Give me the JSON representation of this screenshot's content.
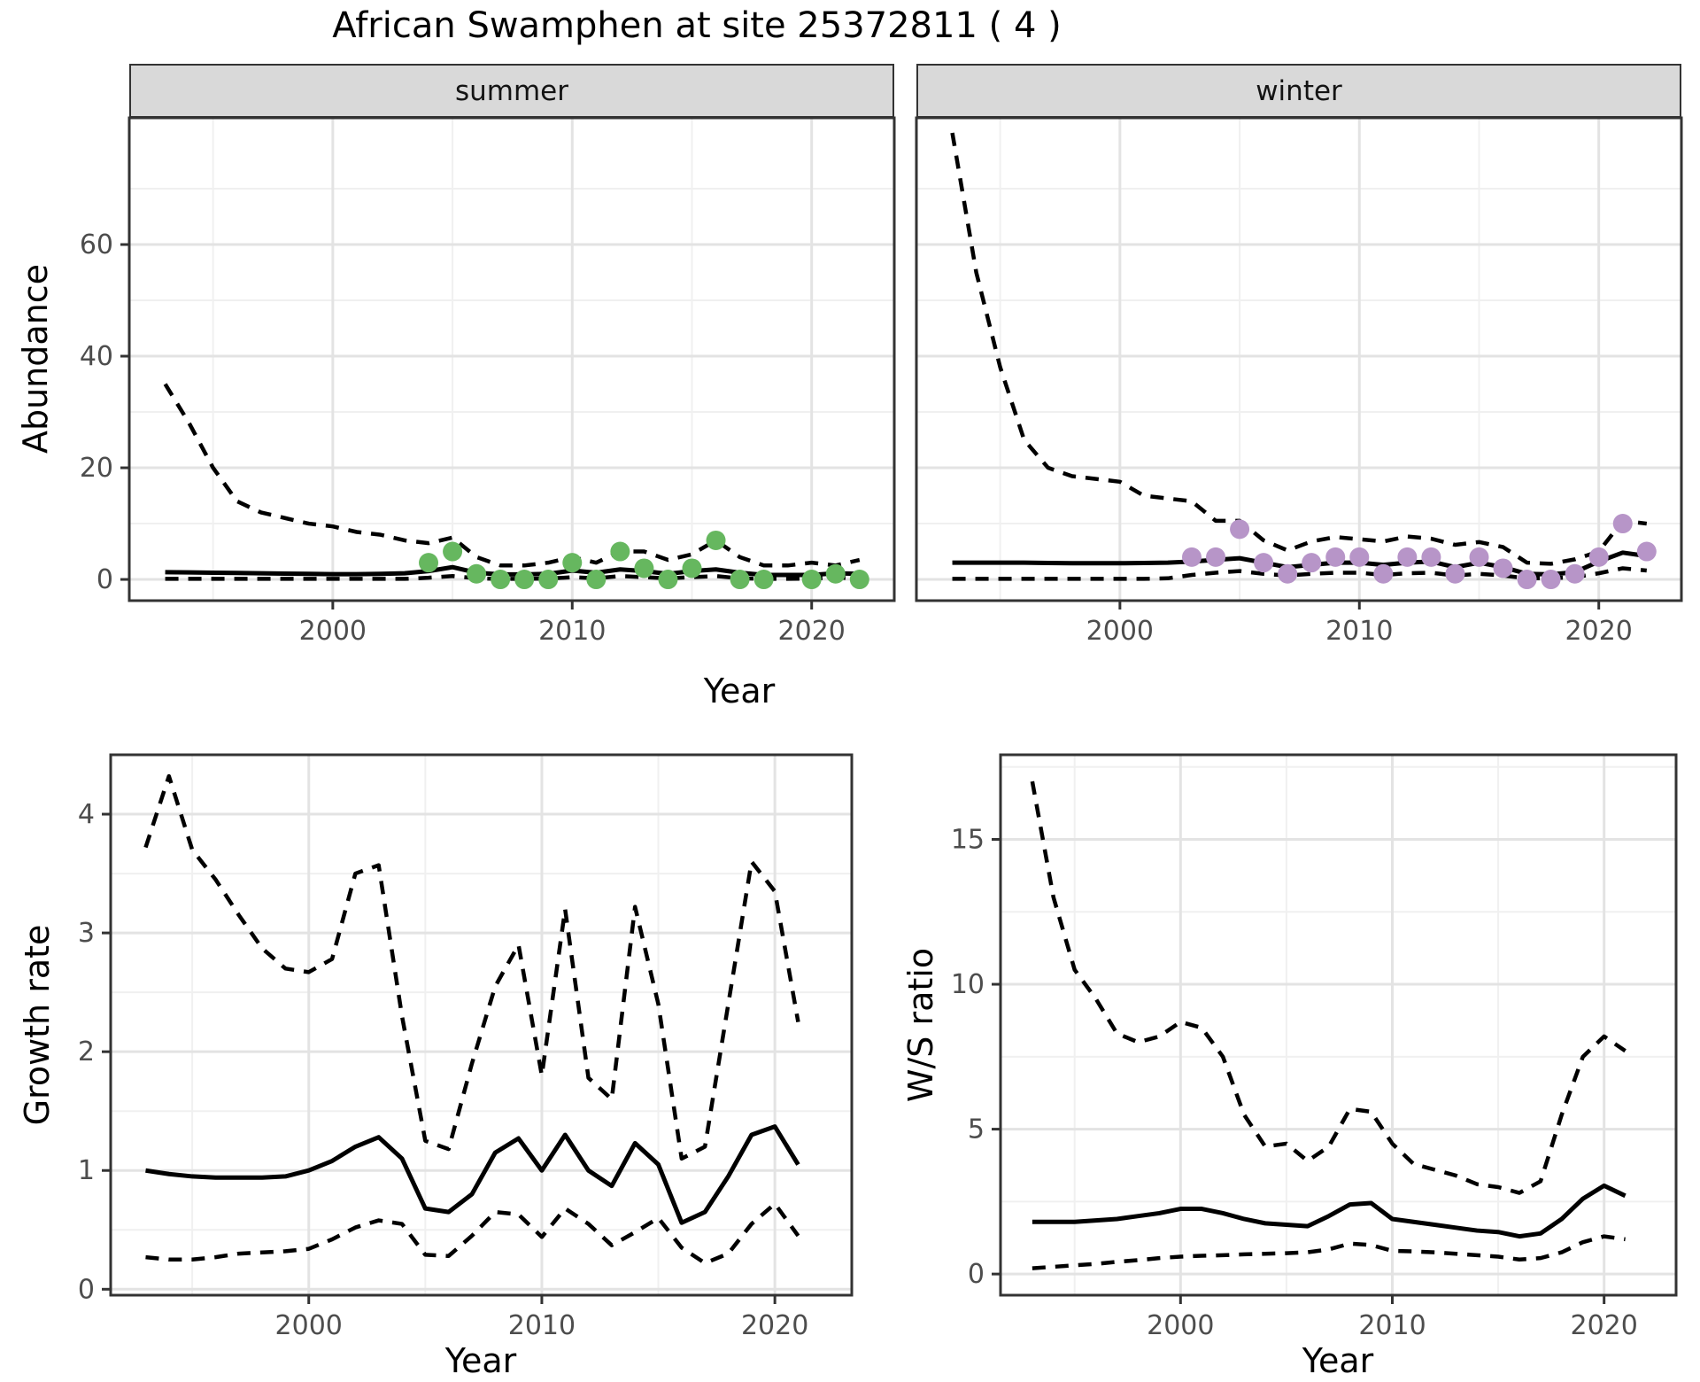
{
  "labels": {
    "title": "African Swamphen at site 25372811 ( 4 )",
    "facet_summer": "summer",
    "facet_winter": "winter",
    "y_top": "Abundance",
    "x_top": "Year",
    "y_growth": "Growth rate",
    "x_growth": "Year",
    "y_ws": "W/S ratio",
    "x_ws": "Year"
  },
  "colors": {
    "summer_points": "#66b75f",
    "winter_points": "#b795c8",
    "line": "#000000",
    "grid_major": "#e3e3e3",
    "grid_minor": "#f0f0f0",
    "panel_border": "#333333",
    "strip_bg": "#d9d9d9",
    "tick_label": "#4d4d4d"
  },
  "chart_data": [
    {
      "id": "abundance-summer",
      "type": "line",
      "facet": "summer",
      "xlabel": "Year",
      "ylabel": "Abundance",
      "x_domain": [
        1991.5,
        2023.45
      ],
      "y_domain": [
        -3.8,
        82.7
      ],
      "x_ticks": [
        2000,
        2010,
        2020
      ],
      "x_minor_ticks": [
        1995,
        2005,
        2015
      ],
      "y_ticks": [
        0,
        20,
        40,
        60
      ],
      "y_minor_ticks": [
        10,
        30,
        50,
        70
      ],
      "show_y_tick_labels": true,
      "series": [
        {
          "name": "upper-95ci",
          "style": "dashed",
          "years": [
            1993,
            1994,
            1995,
            1996,
            1997,
            1998,
            1999,
            2000,
            2001,
            2002,
            2003,
            2004,
            2005,
            2006,
            2007,
            2008,
            2009,
            2010,
            2011,
            2012,
            2013,
            2014,
            2015,
            2016,
            2017,
            2018,
            2019,
            2020,
            2021,
            2022
          ],
          "values": [
            35,
            28,
            20,
            14,
            12,
            11,
            10,
            9.5,
            8.5,
            8,
            7,
            6.5,
            7.5,
            4,
            2.5,
            2.5,
            3,
            4,
            3,
            5,
            5,
            3.5,
            4.5,
            7,
            4,
            2.5,
            2.5,
            3,
            2.5,
            3.5
          ]
        },
        {
          "name": "median",
          "style": "solid",
          "years": [
            1993,
            1994,
            1995,
            1996,
            1997,
            1998,
            1999,
            2000,
            2001,
            2002,
            2003,
            2004,
            2005,
            2006,
            2007,
            2008,
            2009,
            2010,
            2011,
            2012,
            2013,
            2014,
            2015,
            2016,
            2017,
            2018,
            2019,
            2020,
            2021,
            2022
          ],
          "values": [
            1.3,
            1.25,
            1.2,
            1.15,
            1.1,
            1.05,
            1.0,
            0.95,
            0.95,
            1.0,
            1.1,
            1.5,
            2.2,
            1.2,
            0.9,
            0.9,
            1.0,
            1.6,
            1.2,
            1.8,
            1.5,
            1.0,
            1.5,
            1.8,
            1.2,
            0.8,
            0.8,
            0.8,
            1.1,
            1.0
          ]
        },
        {
          "name": "lower-95ci",
          "style": "dashed",
          "years": [
            1993,
            1994,
            1995,
            1996,
            1997,
            1998,
            1999,
            2000,
            2001,
            2002,
            2003,
            2004,
            2005,
            2006,
            2007,
            2008,
            2009,
            2010,
            2011,
            2012,
            2013,
            2014,
            2015,
            2016,
            2017,
            2018,
            2019,
            2020,
            2021,
            2022
          ],
          "values": [
            0.1,
            0.1,
            0.1,
            0.1,
            0.1,
            0.1,
            0.1,
            0.1,
            0.1,
            0.1,
            0.1,
            0.3,
            0.6,
            0.2,
            0.1,
            0.1,
            0.15,
            0.4,
            0.2,
            0.6,
            0.4,
            0.2,
            0.4,
            0.6,
            0.2,
            0.1,
            0.1,
            0.15,
            0.3,
            0.2
          ]
        }
      ],
      "points": {
        "name": "observed-abundance-summer",
        "color": "#66b75f",
        "years": [
          2004,
          2005,
          2006,
          2007,
          2008,
          2009,
          2010,
          2011,
          2012,
          2013,
          2014,
          2015,
          2016,
          2017,
          2018,
          2020,
          2021,
          2022
        ],
        "values": [
          3,
          5,
          1,
          0,
          0,
          0,
          3,
          0,
          5,
          2,
          0,
          2,
          7,
          0,
          0,
          0,
          1,
          0
        ]
      }
    },
    {
      "id": "abundance-winter",
      "type": "line",
      "facet": "winter",
      "xlabel": "Year",
      "ylabel": "Abundance",
      "x_domain": [
        1991.5,
        2023.45
      ],
      "y_domain": [
        -3.8,
        82.7
      ],
      "x_ticks": [
        2000,
        2010,
        2020
      ],
      "x_minor_ticks": [
        1995,
        2005,
        2015
      ],
      "y_ticks": [
        0,
        20,
        40,
        60
      ],
      "y_minor_ticks": [
        10,
        30,
        50,
        70
      ],
      "show_y_tick_labels": false,
      "series": [
        {
          "name": "upper-95ci",
          "style": "dashed",
          "years": [
            1993,
            1994,
            1995,
            1996,
            1997,
            1998,
            1999,
            2000,
            2001,
            2002,
            2003,
            2004,
            2005,
            2006,
            2007,
            2008,
            2009,
            2010,
            2011,
            2012,
            2013,
            2014,
            2015,
            2016,
            2017,
            2018,
            2019,
            2020,
            2021,
            2022
          ],
          "values": [
            80,
            55,
            38,
            25,
            20,
            18.5,
            18,
            17.5,
            15,
            14.5,
            14,
            10.5,
            10.5,
            7,
            5.2,
            6.8,
            7.6,
            7.2,
            6.8,
            7.7,
            7.3,
            6.2,
            6.7,
            5.8,
            3,
            2.8,
            3.6,
            5,
            10.5,
            10
          ]
        },
        {
          "name": "median",
          "style": "solid",
          "years": [
            1993,
            1994,
            1995,
            1996,
            1997,
            1998,
            1999,
            2000,
            2001,
            2002,
            2003,
            2004,
            2005,
            2006,
            2007,
            2008,
            2009,
            2010,
            2011,
            2012,
            2013,
            2014,
            2015,
            2016,
            2017,
            2018,
            2019,
            2020,
            2021,
            2022
          ],
          "values": [
            3,
            3,
            3,
            3,
            2.95,
            2.9,
            2.9,
            2.9,
            2.95,
            3,
            3.2,
            3.5,
            3.8,
            3,
            2.2,
            2.6,
            3,
            3,
            2.6,
            3,
            3.2,
            2.2,
            3,
            2.2,
            1,
            0.9,
            1.3,
            3.2,
            4.8,
            4.2
          ]
        },
        {
          "name": "lower-95ci",
          "style": "dashed",
          "years": [
            1993,
            1994,
            1995,
            1996,
            1997,
            1998,
            1999,
            2000,
            2001,
            2002,
            2003,
            2004,
            2005,
            2006,
            2007,
            2008,
            2009,
            2010,
            2011,
            2012,
            2013,
            2014,
            2015,
            2016,
            2017,
            2018,
            2019,
            2020,
            2021,
            2022
          ],
          "values": [
            0.1,
            0.1,
            0.1,
            0.1,
            0.1,
            0.1,
            0.1,
            0.1,
            0.1,
            0.2,
            0.8,
            1.2,
            1.5,
            1,
            0.7,
            1,
            1.2,
            1.2,
            0.8,
            1.1,
            1.2,
            0.7,
            1,
            0.7,
            0.2,
            0.2,
            0.4,
            1.1,
            2,
            1.6
          ]
        }
      ],
      "points": {
        "name": "observed-abundance-winter",
        "color": "#b795c8",
        "years": [
          2003,
          2004,
          2005,
          2006,
          2007,
          2008,
          2009,
          2010,
          2011,
          2012,
          2013,
          2014,
          2015,
          2016,
          2017,
          2018,
          2019,
          2020,
          2021,
          2022
        ],
        "values": [
          4,
          4,
          9,
          3,
          1,
          3,
          4,
          4,
          1,
          4,
          4,
          1,
          4,
          2,
          0,
          0,
          1,
          4,
          10,
          5
        ]
      }
    },
    {
      "id": "growth-rate",
      "type": "line",
      "facet": null,
      "xlabel": "Year",
      "ylabel": "Growth rate",
      "x_domain": [
        1991.5,
        2023.3
      ],
      "y_domain": [
        -0.05,
        4.5
      ],
      "x_ticks": [
        2000,
        2010,
        2020
      ],
      "x_minor_ticks": [
        1995,
        2005,
        2015
      ],
      "y_ticks": [
        0,
        1,
        2,
        3,
        4
      ],
      "y_minor_ticks": [
        0.5,
        1.5,
        2.5,
        3.5
      ],
      "show_y_tick_labels": true,
      "series": [
        {
          "name": "upper-95ci",
          "style": "dashed",
          "years": [
            1993,
            1994,
            1995,
            1996,
            1997,
            1998,
            1999,
            2000,
            2001,
            2002,
            2003,
            2004,
            2005,
            2006,
            2007,
            2008,
            2009,
            2010,
            2011,
            2012,
            2013,
            2014,
            2015,
            2016,
            2017,
            2018,
            2019,
            2020,
            2021
          ],
          "values": [
            3.72,
            4.32,
            3.7,
            3.45,
            3.15,
            2.87,
            2.7,
            2.67,
            2.78,
            3.5,
            3.57,
            2.3,
            1.25,
            1.18,
            1.9,
            2.55,
            2.9,
            1.8,
            3.2,
            1.78,
            1.6,
            3.22,
            2.4,
            1.1,
            1.2,
            2.4,
            3.6,
            3.35,
            2.25
          ]
        },
        {
          "name": "median",
          "style": "solid",
          "years": [
            1993,
            1994,
            1995,
            1996,
            1997,
            1998,
            1999,
            2000,
            2001,
            2002,
            2003,
            2004,
            2005,
            2006,
            2007,
            2008,
            2009,
            2010,
            2011,
            2012,
            2013,
            2014,
            2015,
            2016,
            2017,
            2018,
            2019,
            2020,
            2021
          ],
          "values": [
            1.0,
            0.97,
            0.95,
            0.94,
            0.94,
            0.94,
            0.95,
            1.0,
            1.08,
            1.2,
            1.28,
            1.1,
            0.68,
            0.65,
            0.8,
            1.15,
            1.27,
            1.0,
            1.3,
            1.0,
            0.87,
            1.23,
            1.05,
            0.56,
            0.65,
            0.95,
            1.3,
            1.37,
            1.05
          ]
        },
        {
          "name": "lower-95ci",
          "style": "dashed",
          "years": [
            1993,
            1994,
            1995,
            1996,
            1997,
            1998,
            1999,
            2000,
            2001,
            2002,
            2003,
            2004,
            2005,
            2006,
            2007,
            2008,
            2009,
            2010,
            2011,
            2012,
            2013,
            2014,
            2015,
            2016,
            2017,
            2018,
            2019,
            2020,
            2021
          ],
          "values": [
            0.27,
            0.25,
            0.25,
            0.27,
            0.3,
            0.31,
            0.32,
            0.34,
            0.42,
            0.52,
            0.58,
            0.55,
            0.29,
            0.28,
            0.45,
            0.65,
            0.63,
            0.44,
            0.68,
            0.55,
            0.37,
            0.48,
            0.6,
            0.35,
            0.22,
            0.3,
            0.55,
            0.72,
            0.45
          ]
        }
      ],
      "points": null
    },
    {
      "id": "ws-ratio",
      "type": "line",
      "facet": null,
      "xlabel": "Year",
      "ylabel": "W/S ratio",
      "x_domain": [
        1991.5,
        2023.4
      ],
      "y_domain": [
        -0.73,
        17.92
      ],
      "x_ticks": [
        2000,
        2010,
        2020
      ],
      "x_minor_ticks": [
        1995,
        2005,
        2015
      ],
      "y_ticks": [
        0,
        5,
        10,
        15
      ],
      "y_minor_ticks": [
        2.5,
        7.5,
        12.5,
        17.5
      ],
      "show_y_tick_labels": true,
      "series": [
        {
          "name": "upper-95ci",
          "style": "dashed",
          "years": [
            1993,
            1994,
            1995,
            1996,
            1997,
            1998,
            1999,
            2000,
            2001,
            2002,
            2003,
            2004,
            2005,
            2006,
            2007,
            2008,
            2009,
            2010,
            2011,
            2012,
            2013,
            2014,
            2015,
            2016,
            2017,
            2018,
            2019,
            2020,
            2021
          ],
          "values": [
            17,
            13,
            10.5,
            9.5,
            8.3,
            8.0,
            8.2,
            8.7,
            8.5,
            7.5,
            5.5,
            4.4,
            4.5,
            3.9,
            4.4,
            5.7,
            5.6,
            4.5,
            3.8,
            3.6,
            3.4,
            3.1,
            3.0,
            2.8,
            3.2,
            5.5,
            7.5,
            8.2,
            7.7
          ]
        },
        {
          "name": "median",
          "style": "solid",
          "years": [
            1993,
            1994,
            1995,
            1996,
            1997,
            1998,
            1999,
            2000,
            2001,
            2002,
            2003,
            2004,
            2005,
            2006,
            2007,
            2008,
            2009,
            2010,
            2011,
            2012,
            2013,
            2014,
            2015,
            2016,
            2017,
            2018,
            2019,
            2020,
            2021
          ],
          "values": [
            1.8,
            1.8,
            1.8,
            1.85,
            1.9,
            2.0,
            2.1,
            2.25,
            2.25,
            2.1,
            1.9,
            1.75,
            1.7,
            1.65,
            2.0,
            2.4,
            2.45,
            1.9,
            1.8,
            1.7,
            1.6,
            1.5,
            1.45,
            1.3,
            1.4,
            1.9,
            2.6,
            3.05,
            2.7
          ]
        },
        {
          "name": "lower-95ci",
          "style": "dashed",
          "years": [
            1993,
            1994,
            1995,
            1996,
            1997,
            1998,
            1999,
            2000,
            2001,
            2002,
            2003,
            2004,
            2005,
            2006,
            2007,
            2008,
            2009,
            2010,
            2011,
            2012,
            2013,
            2014,
            2015,
            2016,
            2017,
            2018,
            2019,
            2020,
            2021
          ],
          "values": [
            0.2,
            0.25,
            0.3,
            0.35,
            0.42,
            0.48,
            0.55,
            0.6,
            0.63,
            0.65,
            0.68,
            0.7,
            0.72,
            0.75,
            0.85,
            1.05,
            1.0,
            0.8,
            0.78,
            0.75,
            0.7,
            0.65,
            0.6,
            0.5,
            0.55,
            0.75,
            1.1,
            1.3,
            1.2
          ]
        }
      ],
      "points": null
    }
  ]
}
